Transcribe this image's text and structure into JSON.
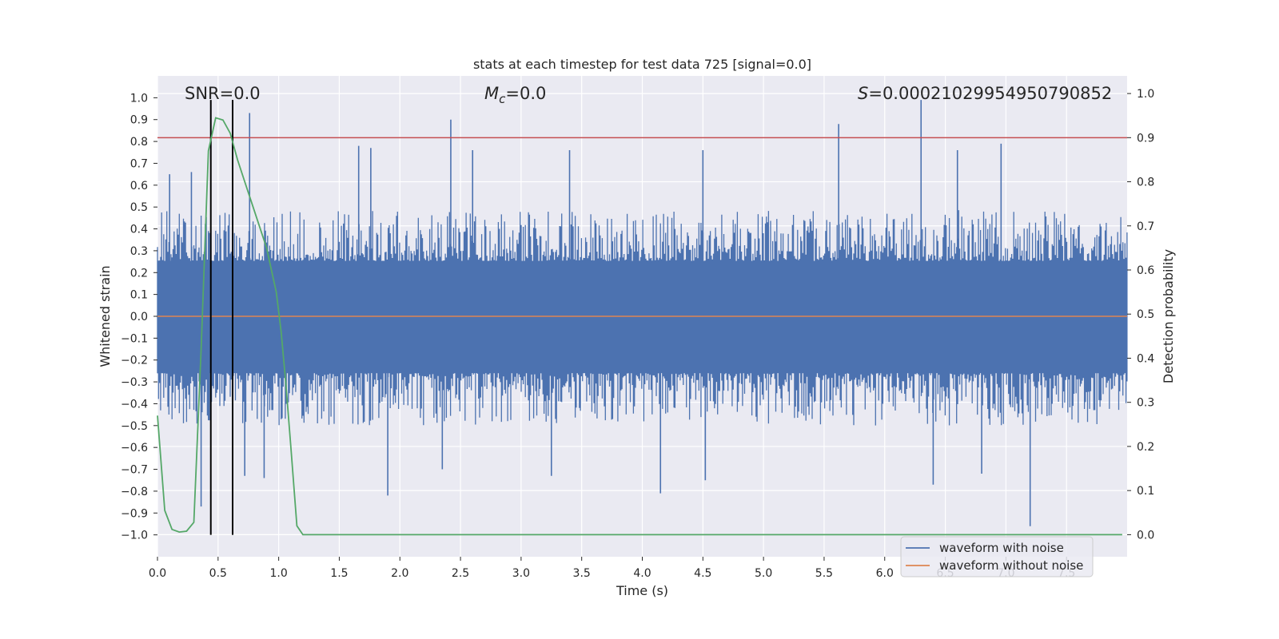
{
  "chart_data": {
    "type": "line",
    "title": "stats at each timestep for test data 725 [signal=0.0]",
    "xlabel": "Time (s)",
    "ylabel_left": "Whitened strain",
    "ylabel_right": "Detection probability",
    "xlim": [
      0.0,
      8.0
    ],
    "ylim_left": [
      -1.1,
      1.1
    ],
    "ylim_right": [
      -0.05,
      1.04
    ],
    "xticks": [
      0.0,
      0.5,
      1.0,
      1.5,
      2.0,
      2.5,
      3.0,
      3.5,
      4.0,
      4.5,
      5.0,
      5.5,
      6.0,
      6.5,
      7.0,
      7.5
    ],
    "xtick_labels": [
      "0.0",
      "0.5",
      "1.0",
      "1.5",
      "2.0",
      "2.5",
      "3.0",
      "3.5",
      "4.0",
      "4.5",
      "5.0",
      "5.5",
      "6.0",
      "6.5",
      "7.0",
      "7.5"
    ],
    "yticks_left": [
      1.0,
      0.9,
      0.8,
      0.7,
      0.6,
      0.5,
      0.4,
      0.3,
      0.2,
      0.1,
      0.0,
      -0.1,
      -0.2,
      -0.3,
      -0.4,
      -0.5,
      -0.6,
      -0.7,
      -0.8,
      -0.9,
      -1.0
    ],
    "ytick_labels_left": [
      "1.0",
      "0.9",
      "0.8",
      "0.7",
      "0.6",
      "0.5",
      "0.4",
      "0.3",
      "0.2",
      "0.1",
      "0.0",
      "−0.1",
      "−0.2",
      "−0.3",
      "−0.4",
      "−0.5",
      "−0.6",
      "−0.7",
      "−0.8",
      "−0.9",
      "−1.0"
    ],
    "yticks_right": [
      1.0,
      0.9,
      0.8,
      0.7,
      0.6,
      0.5,
      0.4,
      0.3,
      0.2,
      0.1,
      0.0
    ],
    "ytick_labels_right": [
      "1.0",
      "0.9",
      "0.8",
      "0.7",
      "0.6",
      "0.5",
      "0.4",
      "0.3",
      "0.2",
      "0.1",
      "0.0"
    ],
    "annotations": {
      "snr": "SNR=0.0",
      "mc_symbol": "M",
      "mc_sub": "c",
      "mc_value": "=0.0",
      "s_symbol": "S",
      "s_value": "=0.00021029954950790852"
    },
    "threshold_right": 0.9,
    "vertical_lines_x": [
      0.44,
      0.62
    ],
    "vertical_lines_range": [
      -1.0,
      0.99
    ],
    "noise_series": {
      "name": "waveform with noise",
      "color": "#4c72b0",
      "band_max": 0.39,
      "band_min": -0.4,
      "peaks": [
        [
          0.76,
          0.93
        ],
        [
          2.42,
          0.9
        ],
        [
          6.3,
          0.99
        ],
        [
          5.62,
          0.88
        ],
        [
          0.1,
          0.65
        ],
        [
          0.28,
          0.66
        ],
        [
          1.66,
          0.78
        ],
        [
          1.76,
          0.77
        ],
        [
          2.6,
          0.76
        ],
        [
          3.4,
          0.76
        ],
        [
          4.5,
          0.76
        ],
        [
          6.6,
          0.76
        ],
        [
          6.96,
          0.79
        ],
        [
          7.2,
          -0.96
        ],
        [
          4.15,
          -0.81
        ],
        [
          1.9,
          -0.82
        ],
        [
          6.4,
          -0.77
        ],
        [
          0.72,
          -0.73
        ],
        [
          0.88,
          -0.74
        ],
        [
          4.52,
          -0.75
        ],
        [
          0.36,
          -0.87
        ],
        [
          6.8,
          -0.72
        ],
        [
          2.35,
          -0.7
        ],
        [
          3.25,
          -0.73
        ]
      ]
    },
    "clean_series": {
      "name": "waveform without noise",
      "color": "#dd8452",
      "value": 0.0
    },
    "probability_series": {
      "color": "#55a868",
      "x": [
        0.0,
        0.06,
        0.12,
        0.18,
        0.24,
        0.3,
        0.36,
        0.42,
        0.48,
        0.54,
        0.6,
        0.66,
        0.72,
        0.78,
        0.84,
        0.9,
        0.94,
        0.98,
        1.02,
        1.06,
        1.1,
        1.15,
        1.2,
        1.3,
        7.96
      ],
      "y": [
        0.27,
        0.055,
        0.012,
        0.006,
        0.008,
        0.028,
        0.42,
        0.87,
        0.945,
        0.94,
        0.91,
        0.85,
        0.8,
        0.75,
        0.7,
        0.65,
        0.6,
        0.55,
        0.46,
        0.34,
        0.2,
        0.02,
        0.0,
        0.0,
        0.0
      ]
    },
    "legend": {
      "placement": "lower right",
      "entries": [
        "waveform with noise",
        "waveform without noise"
      ]
    },
    "colors": {
      "background": "#eaeaf2",
      "grid": "#ffffff",
      "threshold": "#c44e52",
      "vertical": "#000000"
    }
  }
}
